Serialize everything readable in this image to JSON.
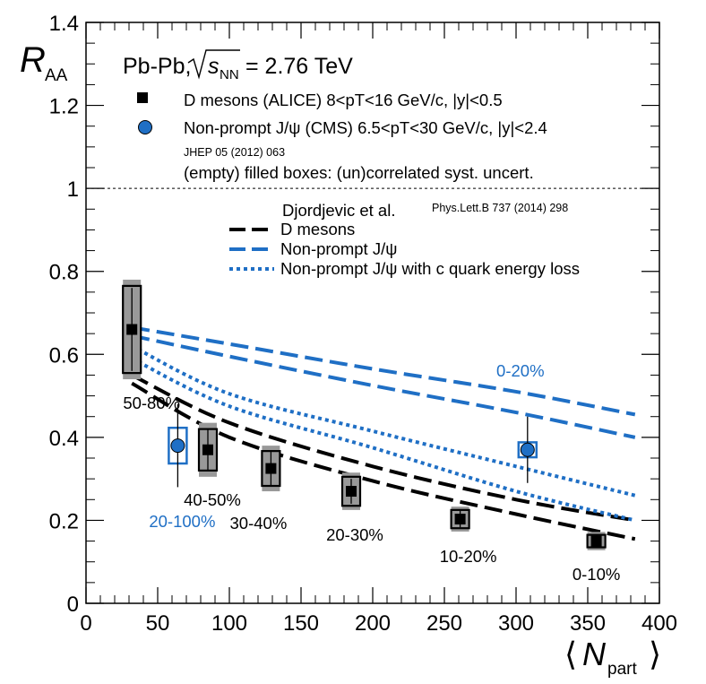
{
  "chart_data": {
    "type": "scatter",
    "title": "Pb-Pb, √sNN = 2.76 TeV",
    "title_prefix": "Pb-Pb,",
    "energy_symbol": "s",
    "energy_sub": "NN",
    "energy_value": "= 2.76 TeV",
    "ylabel_main": "R",
    "ylabel_sub": "AA",
    "xlabel_main": "N",
    "xlabel_sub": "part",
    "xlim": [
      0,
      400
    ],
    "ylim": [
      0,
      1.4
    ],
    "x_ticks": [
      0,
      50,
      100,
      150,
      200,
      250,
      300,
      350,
      400
    ],
    "y_ticks": [
      0,
      0.2,
      0.4,
      0.6,
      0.8,
      1,
      1.2,
      1.4
    ],
    "x_tick_labels": [
      "0",
      "50",
      "100",
      "150",
      "200",
      "250",
      "300",
      "350",
      "400"
    ],
    "y_tick_labels": [
      "0",
      "0.2",
      "0.4",
      "0.6",
      "0.8",
      "1",
      "1.2",
      "1.4"
    ],
    "reference_line_y": 1,
    "legend": {
      "d_mesons": "D mesons (ALICE) 8<pT<16 GeV/c, |y|<0.5",
      "jpsi": "Non-prompt J/ψ (CMS) 6.5<pT<30 GeV/c, |y|<2.4",
      "jhep": "JHEP 05 (2012) 063",
      "boxes": "(empty) filled boxes: (un)correlated syst. uncert.",
      "theory_title": "Djordjevic et al.",
      "theory_ref": "Phys.Lett.B 737 (2014) 298",
      "theory_d": "D mesons",
      "theory_jpsi": "Non-prompt J/ψ",
      "theory_jpsi_c": "Non-prompt J/ψ with c quark energy loss"
    },
    "colors": {
      "d_mesons": "#000000",
      "jpsi": "#1f6fc5",
      "box_fill": "#999999"
    },
    "series": [
      {
        "name": "D mesons (ALICE)",
        "points": [
          {
            "x": 32,
            "y": 0.66,
            "stat": 0.1,
            "syst_unc": 0.105,
            "syst_cor": 0.12,
            "label": "50-80%"
          },
          {
            "x": 85,
            "y": 0.37,
            "stat": 0.05,
            "syst_unc": 0.05,
            "syst_cor": 0.065,
            "label": "40-50%"
          },
          {
            "x": 129,
            "y": 0.325,
            "stat": 0.04,
            "syst_unc": 0.042,
            "syst_cor": 0.055,
            "label": "30-40%"
          },
          {
            "x": 185,
            "y": 0.27,
            "stat": 0.03,
            "syst_unc": 0.035,
            "syst_cor": 0.045,
            "label": "20-30%"
          },
          {
            "x": 261,
            "y": 0.203,
            "stat": 0.02,
            "syst_unc": 0.022,
            "syst_cor": 0.03,
            "label": "10-20%"
          },
          {
            "x": 356,
            "y": 0.15,
            "stat": 0.015,
            "syst_unc": 0.015,
            "syst_cor": 0.022,
            "label": "0-10%"
          }
        ]
      },
      {
        "name": "Non-prompt J/ψ (CMS)",
        "points": [
          {
            "x": 64,
            "y": 0.38,
            "stat": 0.1,
            "syst_unc": 0.043,
            "label": "20-100%"
          },
          {
            "x": 308,
            "y": 0.37,
            "stat": 0.08,
            "syst_unc": 0.018,
            "label": "0-20%"
          }
        ]
      }
    ],
    "theory_bands": [
      {
        "name": "D mesons",
        "style": "dash-black",
        "upper": [
          [
            32,
            0.55
          ],
          [
            100,
            0.435
          ],
          [
            200,
            0.33
          ],
          [
            300,
            0.25
          ],
          [
            383,
            0.2
          ]
        ],
        "lower": [
          [
            32,
            0.53
          ],
          [
            100,
            0.4
          ],
          [
            200,
            0.295
          ],
          [
            300,
            0.215
          ],
          [
            383,
            0.155
          ]
        ]
      },
      {
        "name": "Non-prompt J/psi",
        "style": "dash-blue",
        "upper": [
          [
            32,
            0.665
          ],
          [
            100,
            0.625
          ],
          [
            200,
            0.565
          ],
          [
            300,
            0.51
          ],
          [
            383,
            0.455
          ]
        ],
        "lower": [
          [
            32,
            0.645
          ],
          [
            100,
            0.595
          ],
          [
            200,
            0.525
          ],
          [
            300,
            0.46
          ],
          [
            383,
            0.4
          ]
        ]
      },
      {
        "name": "Non-prompt J/psi with c quark energy loss",
        "style": "dot-blue",
        "upper": [
          [
            32,
            0.62
          ],
          [
            100,
            0.505
          ],
          [
            200,
            0.415
          ],
          [
            300,
            0.33
          ],
          [
            383,
            0.26
          ]
        ],
        "lower": [
          [
            32,
            0.59
          ],
          [
            100,
            0.475
          ],
          [
            200,
            0.375
          ],
          [
            300,
            0.27
          ],
          [
            383,
            0.2
          ]
        ]
      }
    ]
  }
}
